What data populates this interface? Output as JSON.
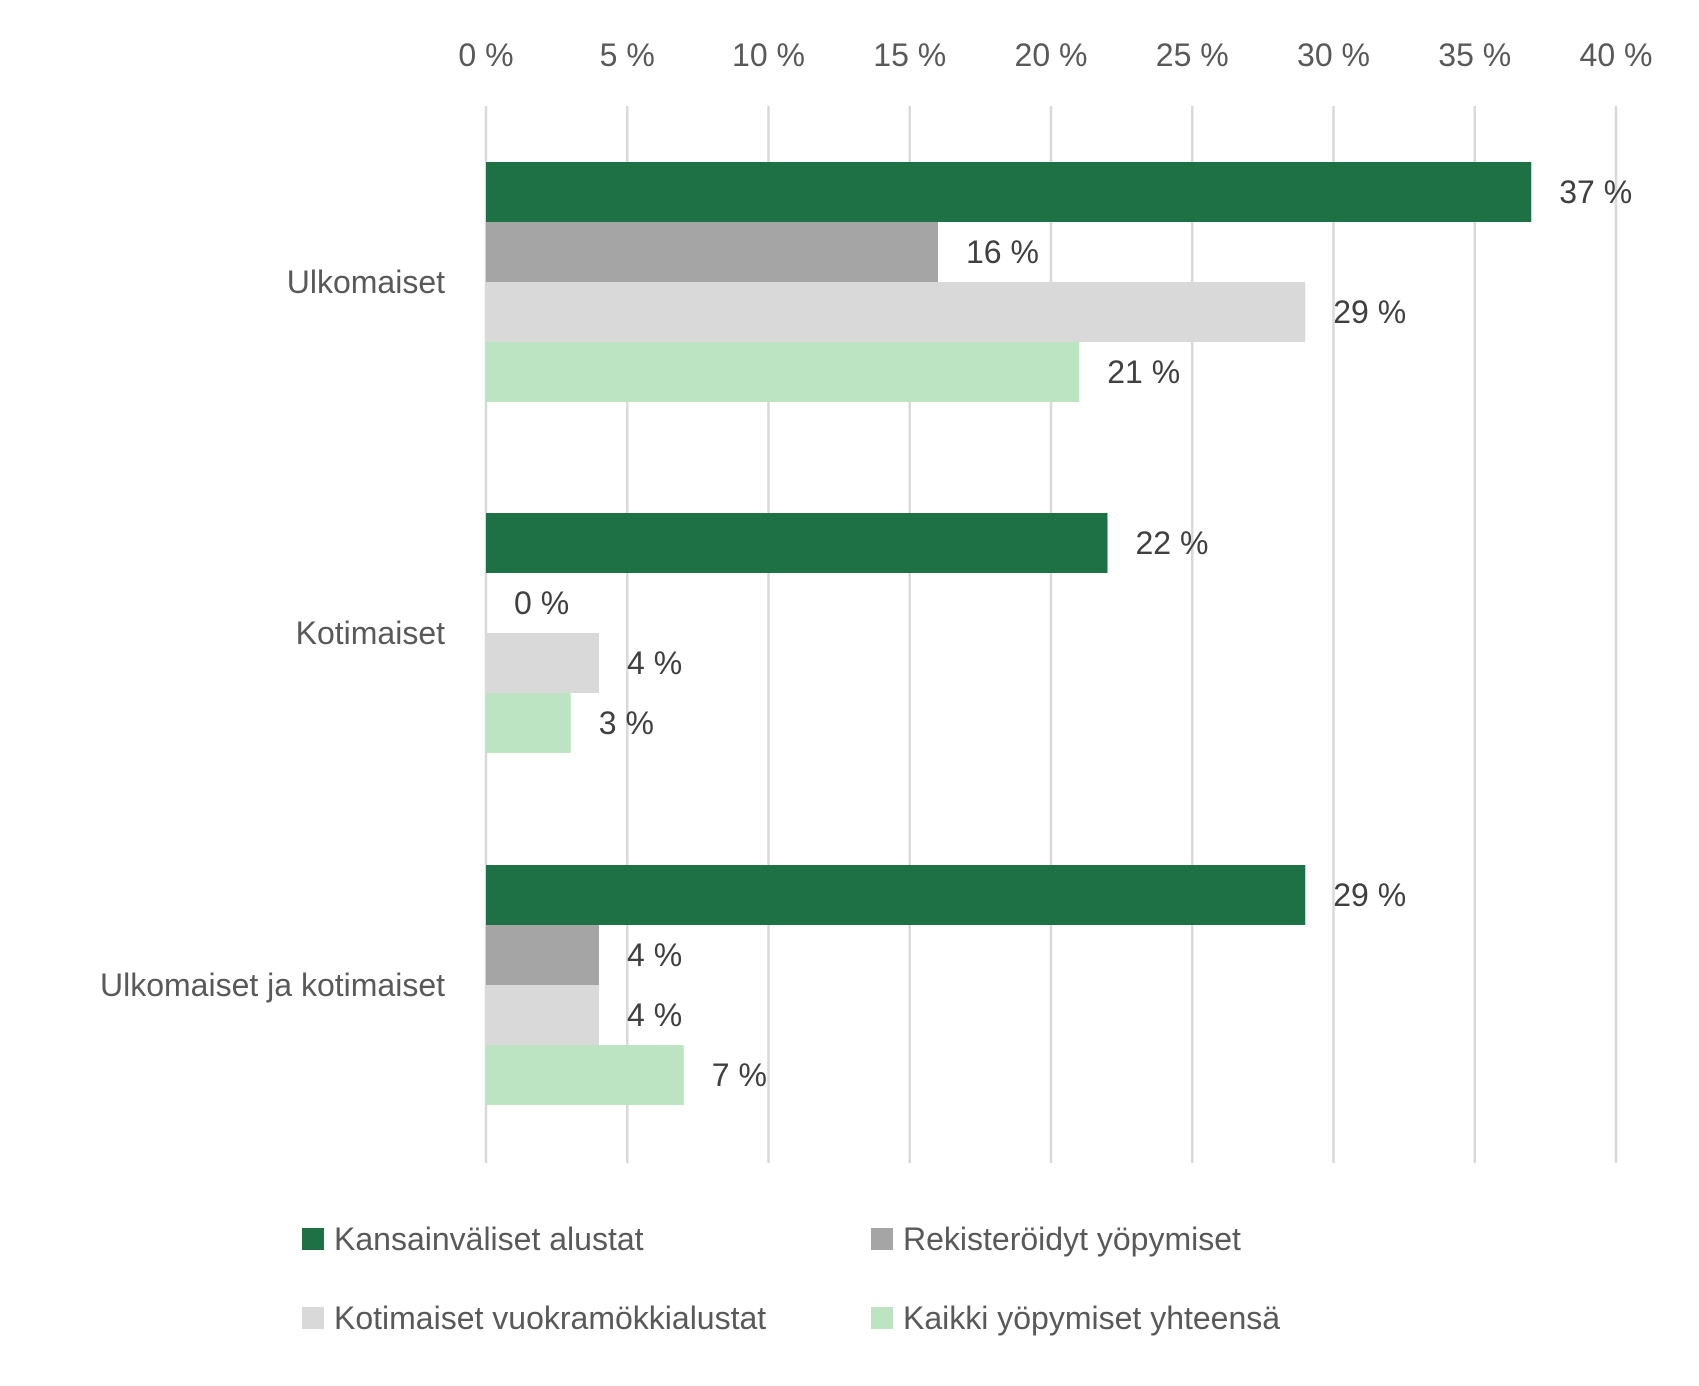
{
  "chart_data": {
    "type": "bar",
    "orientation": "horizontal",
    "categories": [
      "Ulkomaiset",
      "Kotimaiset",
      "Ulkomaiset ja kotimaiset"
    ],
    "series": [
      {
        "name": "Kansainväliset alustat",
        "color": "#1e7145",
        "values": [
          37,
          22,
          29
        ],
        "labels": [
          "37 %",
          "22 %",
          "29 %"
        ]
      },
      {
        "name": "Rekisteröidyt yöpymiset",
        "color": "#a5a5a5",
        "values": [
          16,
          0,
          4
        ],
        "labels": [
          "16 %",
          "0 %",
          "4 %"
        ]
      },
      {
        "name": "Kotimaiset vuokramökkialustat",
        "color": "#d9d9d9",
        "values": [
          29,
          4,
          4
        ],
        "labels": [
          "29 %",
          "4 %",
          "4 %"
        ]
      },
      {
        "name": "Kaikki yöpymiset yhteensä",
        "color": "#bde4c2",
        "values": [
          21,
          3,
          7
        ],
        "labels": [
          "21 %",
          "3 %",
          "7 %"
        ]
      }
    ],
    "xlim": [
      0,
      40
    ],
    "x_ticks": [
      0,
      5,
      10,
      15,
      20,
      25,
      30,
      35,
      40
    ],
    "x_tick_labels": [
      "0 %",
      "5 %",
      "10 %",
      "15 %",
      "20 %",
      "25 %",
      "30 %",
      "35 %",
      "40 %"
    ],
    "x_axis_position": "top",
    "grid": true,
    "legend_position": "bottom",
    "title": "",
    "xlabel": "",
    "ylabel": ""
  }
}
